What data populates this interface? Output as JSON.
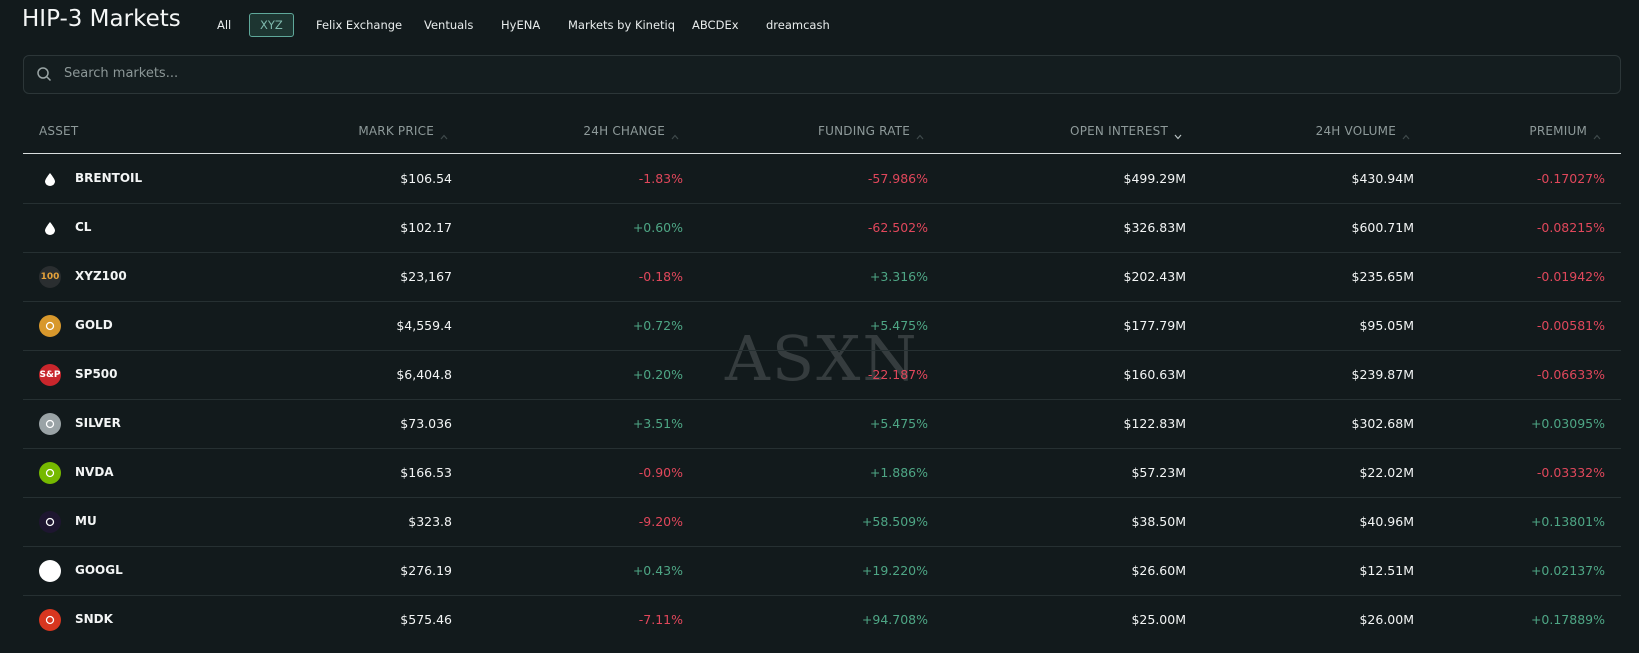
{
  "header": {
    "title": "HIP-3 Markets",
    "tabs": [
      "All",
      "XYZ",
      "Felix Exchange",
      "Ventuals",
      "HyENA",
      "Markets by Kinetiq",
      "ABCDEx",
      "dreamcash"
    ],
    "selected_tab": 1
  },
  "search": {
    "placeholder": "Search markets..."
  },
  "watermark": "ASXN",
  "table": {
    "columns": [
      "ASSET",
      "MARK PRICE",
      "24H CHANGE",
      "FUNDING RATE",
      "OPEN INTEREST",
      "24H VOLUME",
      "PREMIUM"
    ],
    "sorted_column": 4,
    "rows": [
      {
        "cells": [
          "BRENTOIL",
          "$106.54",
          "-1.83%",
          "-57.986%",
          "$499.29M",
          "$430.94M",
          "-0.17027%"
        ]
      },
      {
        "cells": [
          "CL",
          "$102.17",
          "+0.60%",
          "-62.502%",
          "$326.83M",
          "$600.71M",
          "-0.08215%"
        ]
      },
      {
        "icon": "100",
        "cells": [
          "XYZ100",
          "$23,167",
          "-0.18%",
          "+3.316%",
          "$202.43M",
          "$235.65M",
          "-0.01942%"
        ]
      },
      {
        "cells": [
          "GOLD",
          "$4,559.4",
          "+0.72%",
          "+5.475%",
          "$177.79M",
          "$95.05M",
          "-0.00581%"
        ]
      },
      {
        "icon": "S&P",
        "cells": [
          "SP500",
          "$6,404.8",
          "+0.20%",
          "-22.187%",
          "$160.63M",
          "$239.87M",
          "-0.06633%"
        ]
      },
      {
        "cells": [
          "SILVER",
          "$73.036",
          "+3.51%",
          "+5.475%",
          "$122.83M",
          "$302.68M",
          "+0.03095%"
        ]
      },
      {
        "cells": [
          "NVDA",
          "$166.53",
          "-0.90%",
          "+1.886%",
          "$57.23M",
          "$22.02M",
          "-0.03332%"
        ]
      },
      {
        "cells": [
          "MU",
          "$323.8",
          "-9.20%",
          "+58.509%",
          "$38.50M",
          "$40.96M",
          "+0.13801%"
        ]
      },
      {
        "cells": [
          "GOOGL",
          "$276.19",
          "+0.43%",
          "+19.220%",
          "$26.60M",
          "$12.51M",
          "+0.02137%"
        ]
      },
      {
        "cells": [
          "SNDK",
          "$575.46",
          "-7.11%",
          "+94.708%",
          "$25.00M",
          "$26.00M",
          "+0.17889%"
        ]
      }
    ]
  }
}
